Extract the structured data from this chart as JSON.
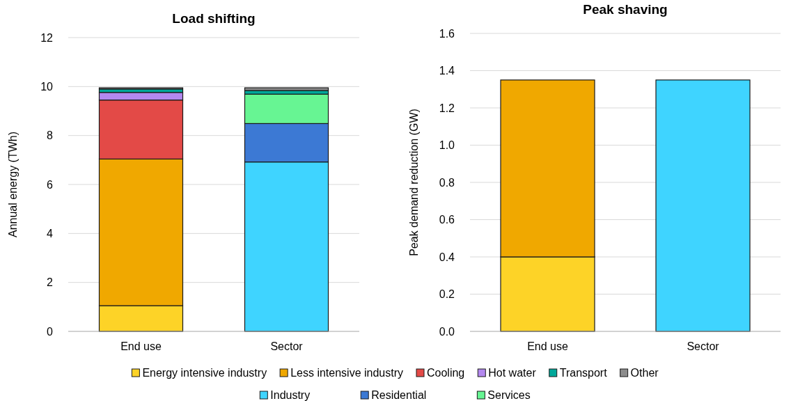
{
  "chart_data": [
    {
      "type": "bar",
      "title": "Load shifting",
      "ylabel": "Annual energy (TWh)",
      "categories": [
        "End use",
        "Sector"
      ],
      "stacked": true,
      "ylim": [
        0,
        12
      ],
      "yticks": [
        0,
        2,
        4,
        6,
        8,
        10,
        12
      ],
      "grid": "y",
      "legend": "bottom",
      "series": [
        {
          "name": "Energy intensive industry",
          "color": "#fdd327",
          "values": [
            1.05,
            null
          ]
        },
        {
          "name": "Less intensive industry",
          "color": "#f0a800",
          "values": [
            5.99,
            null
          ]
        },
        {
          "name": "Industry",
          "color": "#3fd4ff",
          "values": [
            null,
            6.92
          ]
        },
        {
          "name": "Residential",
          "color": "#3c79d4",
          "values": [
            null,
            1.57
          ]
        },
        {
          "name": "Services",
          "color": "#67f593",
          "values": [
            null,
            1.2
          ]
        },
        {
          "name": "Cooling",
          "color": "#e34a47",
          "values": [
            2.41,
            null
          ]
        },
        {
          "name": "Hot water",
          "color": "#b388ef",
          "values": [
            0.31,
            null
          ]
        },
        {
          "name": "Transport",
          "color": "#00a89a",
          "values": [
            0.14,
            0.15
          ]
        },
        {
          "name": "Other",
          "color": "#8c8c8c",
          "values": [
            0.05,
            0.11
          ]
        }
      ]
    },
    {
      "type": "bar",
      "title": "Peak shaving",
      "ylabel": "Peak demand reduction (GW)",
      "categories": [
        "End use",
        "Sector"
      ],
      "stacked": true,
      "ylim": [
        0,
        1.6
      ],
      "yticks": [
        {
          "value": 0,
          "label": "0.0"
        },
        {
          "value": 0.2,
          "label": "0.2"
        },
        {
          "value": 0.4,
          "label": "0.4"
        },
        {
          "value": 0.6,
          "label": "0.6"
        },
        {
          "value": 0.8,
          "label": "0.8"
        },
        {
          "value": 1,
          "label": "1.0"
        },
        {
          "value": 1.2,
          "label": "1.2"
        },
        {
          "value": 1.4,
          "label": "1.4"
        },
        {
          "value": 1.6,
          "label": "1.6"
        }
      ],
      "grid": "y",
      "series": [
        {
          "name": "Energy intensive industry",
          "color": "#fdd327",
          "values": [
            0.4,
            null
          ]
        },
        {
          "name": "Less intensive industry",
          "color": "#f0a800",
          "values": [
            0.95,
            null
          ]
        },
        {
          "name": "Industry",
          "color": "#3fd4ff",
          "values": [
            null,
            1.35
          ]
        }
      ]
    }
  ]
}
